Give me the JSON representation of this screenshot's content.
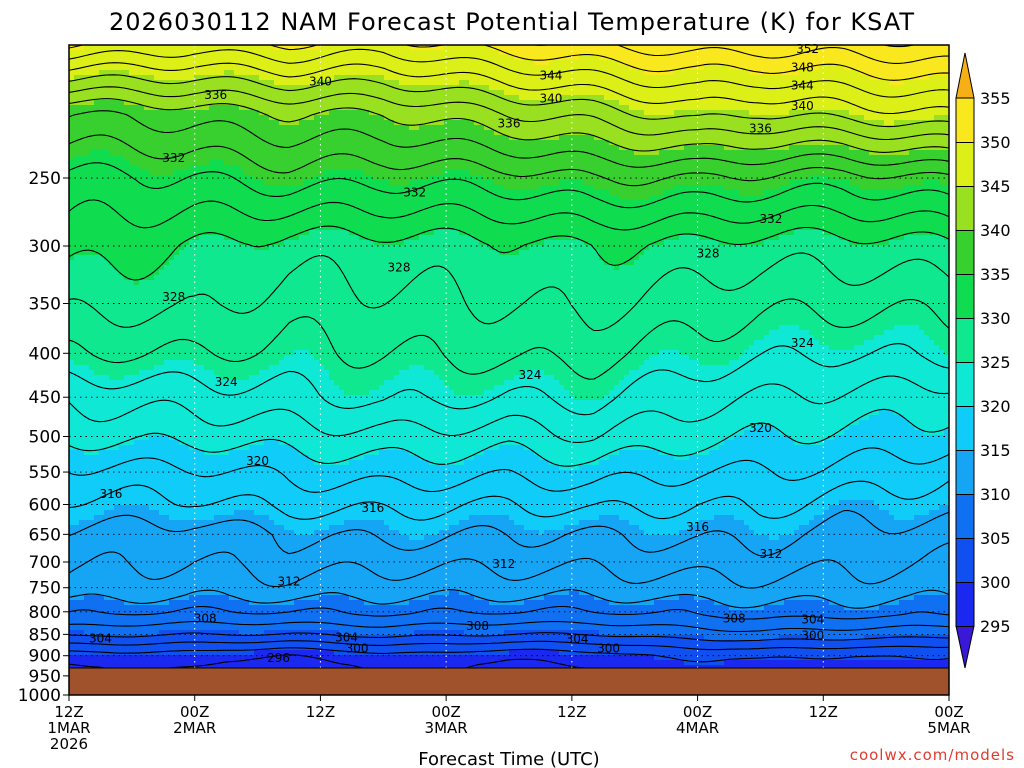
{
  "title": "2026030112 NAM Forecast Potential Temperature (K) for KSAT",
  "credit": "coolwx.com/models",
  "chart_data": {
    "type": "heatmap",
    "title": "2026030112 NAM Forecast Potential Temperature (K) for KSAT",
    "xlabel": "Forecast Time (UTC)",
    "ylabel": "",
    "ylog": true,
    "ylim": [
      1000,
      175
    ],
    "xlim": [
      0,
      84
    ],
    "y_ticks": [
      "250",
      "300",
      "350",
      "400",
      "450",
      "500",
      "550",
      "600",
      "650",
      "700",
      "750",
      "800",
      "850",
      "900",
      "950",
      "1000"
    ],
    "x_ticks": [
      {
        "hour": 0,
        "lines": [
          "12Z",
          "1MAR",
          "2026"
        ]
      },
      {
        "hour": 12,
        "lines": [
          "00Z",
          "2MAR"
        ]
      },
      {
        "hour": 24,
        "lines": [
          "12Z"
        ]
      },
      {
        "hour": 36,
        "lines": [
          "00Z",
          "3MAR"
        ]
      },
      {
        "hour": 48,
        "lines": [
          "12Z"
        ]
      },
      {
        "hour": 60,
        "lines": [
          "00Z",
          "4MAR"
        ]
      },
      {
        "hour": 72,
        "lines": [
          "12Z"
        ]
      },
      {
        "hour": 84,
        "lines": [
          "00Z",
          "5MAR"
        ]
      }
    ],
    "colorbar": {
      "ticks": [
        "295",
        "300",
        "305",
        "310",
        "315",
        "320",
        "325",
        "330",
        "335",
        "340",
        "345",
        "350",
        "355"
      ],
      "levels": [
        290,
        295,
        300,
        305,
        310,
        315,
        320,
        325,
        330,
        335,
        340,
        345,
        350,
        355,
        360
      ],
      "colors": [
        "#3a18d8",
        "#1a28f0",
        "#1050f0",
        "#1070f2",
        "#16a4f5",
        "#10ccf8",
        "#10e8d6",
        "#10e890",
        "#10dc50",
        "#38d02e",
        "#98e020",
        "#dcf018",
        "#fae81e",
        "#f6b016"
      ]
    },
    "ground_color": "#a0522d",
    "contour_interval": 2,
    "contour_labels": [
      {
        "value": "352",
        "hour": 70.5,
        "p": 177
      },
      {
        "value": "348",
        "hour": 70.0,
        "p": 186
      },
      {
        "value": "344",
        "hour": 46.0,
        "p": 190
      },
      {
        "value": "344",
        "hour": 70.0,
        "p": 195
      },
      {
        "value": "340",
        "hour": 24.0,
        "p": 193
      },
      {
        "value": "340",
        "hour": 46.0,
        "p": 202
      },
      {
        "value": "340",
        "hour": 70.0,
        "p": 206
      },
      {
        "value": "336",
        "hour": 14.0,
        "p": 200
      },
      {
        "value": "336",
        "hour": 42.0,
        "p": 216
      },
      {
        "value": "336",
        "hour": 66.0,
        "p": 219
      },
      {
        "value": "332",
        "hour": 10.0,
        "p": 237
      },
      {
        "value": "332",
        "hour": 33.0,
        "p": 260
      },
      {
        "value": "332",
        "hour": 67.0,
        "p": 279
      },
      {
        "value": "328",
        "hour": 31.5,
        "p": 318
      },
      {
        "value": "328",
        "hour": 61.0,
        "p": 306
      },
      {
        "value": "328",
        "hour": 10.0,
        "p": 344
      },
      {
        "value": "324",
        "hour": 15.0,
        "p": 432
      },
      {
        "value": "324",
        "hour": 44.0,
        "p": 424
      },
      {
        "value": "324",
        "hour": 70.0,
        "p": 389
      },
      {
        "value": "320",
        "hour": 18.0,
        "p": 534
      },
      {
        "value": "320",
        "hour": 66.0,
        "p": 489
      },
      {
        "value": "316",
        "hour": 4.0,
        "p": 583
      },
      {
        "value": "316",
        "hour": 29.0,
        "p": 606
      },
      {
        "value": "316",
        "hour": 60.0,
        "p": 637
      },
      {
        "value": "312",
        "hour": 21.0,
        "p": 738
      },
      {
        "value": "312",
        "hour": 41.5,
        "p": 704
      },
      {
        "value": "312",
        "hour": 67.0,
        "p": 685
      },
      {
        "value": "308",
        "hour": 13.0,
        "p": 814
      },
      {
        "value": "308",
        "hour": 39.0,
        "p": 831
      },
      {
        "value": "308",
        "hour": 63.5,
        "p": 815
      },
      {
        "value": "304",
        "hour": 3.0,
        "p": 859
      },
      {
        "value": "304",
        "hour": 26.5,
        "p": 857
      },
      {
        "value": "304",
        "hour": 48.5,
        "p": 861
      },
      {
        "value": "304",
        "hour": 71.0,
        "p": 817
      },
      {
        "value": "300",
        "hour": 27.5,
        "p": 883
      },
      {
        "value": "300",
        "hour": 51.5,
        "p": 883
      },
      {
        "value": "300",
        "hour": 71.0,
        "p": 853
      },
      {
        "value": "296",
        "hour": 20.0,
        "p": 905
      }
    ]
  }
}
